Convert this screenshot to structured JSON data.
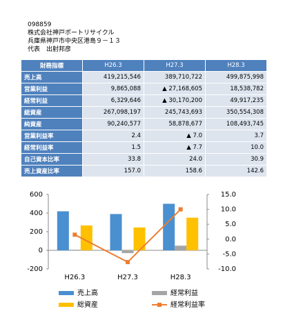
{
  "header": {
    "code": "098859",
    "company": "株式会社神戸ポートリサイクル",
    "address": "兵庫県神戸市中央区港島９－１３",
    "representative": "代表　出射邦彦"
  },
  "table": {
    "header": [
      "財務指標",
      "H26.3",
      "H27.3",
      "H28.3"
    ],
    "rows": [
      [
        "売上高",
        "419,215,546",
        "389,710,722",
        "499,875,998"
      ],
      [
        "営業利益",
        "9,865,088",
        "▲ 27,168,605",
        "18,538,782"
      ],
      [
        "経常利益",
        "6,329,646",
        "▲ 30,170,200",
        "49,917,235"
      ],
      [
        "総資産",
        "267,098,197",
        "245,743,693",
        "350,554,308"
      ],
      [
        "純資産",
        "90,240,577",
        "58,878,677",
        "108,493,745"
      ],
      [
        "営業利益率",
        "2.4",
        "▲ 7.0",
        "3.7"
      ],
      [
        "経常利益率",
        "1.5",
        "▲ 7.7",
        "10.0"
      ],
      [
        "自己資本比率",
        "33.8",
        "24.0",
        "30.9"
      ],
      [
        "売上資産比率",
        "157.0",
        "158.6",
        "142.6"
      ]
    ]
  },
  "chart_data": {
    "type": "bar",
    "categories": [
      "H26.3",
      "H27.3",
      "H28.3"
    ],
    "series": [
      {
        "name": "売上高",
        "color": "#4a90d0",
        "values": [
          419.2,
          389.7,
          499.9
        ]
      },
      {
        "name": "経常利益",
        "color": "#a5a5a5",
        "values": [
          6.3,
          -30.2,
          49.9
        ]
      },
      {
        "name": "総資産",
        "color": "#ffc000",
        "values": [
          267.1,
          245.7,
          350.6
        ]
      },
      {
        "name": "経常利益率",
        "color": "#ed7d31",
        "type": "line",
        "axis": "y2",
        "values": [
          1.5,
          -7.7,
          10.0
        ]
      }
    ],
    "ylim": [
      -200,
      600
    ],
    "yticks": [
      -200,
      0,
      200,
      400,
      600
    ],
    "y2lim": [
      -10,
      15
    ],
    "y2ticks": [
      {
        "value": -10,
        "label": "-10.0"
      },
      {
        "value": -5,
        "label": "-5.0"
      },
      {
        "value": 0,
        "label": "0.0"
      },
      {
        "value": 5,
        "label": "5.0"
      },
      {
        "value": 10,
        "label": "10.0"
      },
      {
        "value": 15,
        "label": "15.0"
      }
    ]
  }
}
